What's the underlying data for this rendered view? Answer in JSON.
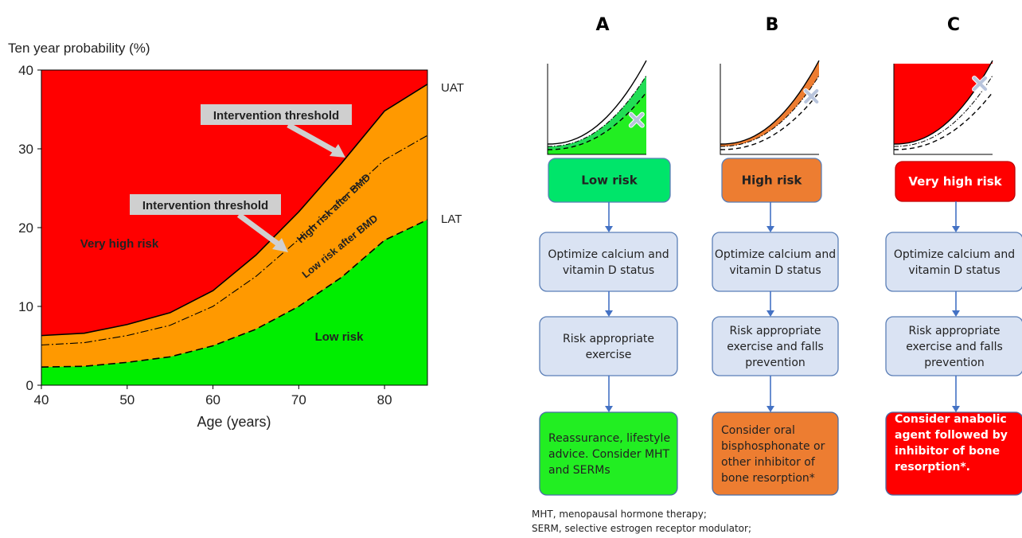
{
  "chart_data": {
    "type": "area",
    "title": "Ten year probability (%)",
    "xlabel": "Age (years)",
    "ylabel": "Ten year probability (%)",
    "xlim": [
      40,
      85
    ],
    "ylim": [
      0,
      40
    ],
    "x_ticks": [
      "40",
      "50",
      "60",
      "70",
      "80"
    ],
    "y_ticks": [
      "0",
      "10",
      "20",
      "30",
      "40"
    ],
    "x": [
      40,
      45,
      50,
      55,
      60,
      65,
      70,
      75,
      80,
      85
    ],
    "series": [
      {
        "values": [
          6.3,
          6.6,
          7.7,
          9.2,
          12.0,
          16.5,
          22.0,
          28.2,
          34.8,
          38.2
        ]
      },
      {
        "values": [
          5.1,
          5.4,
          6.3,
          7.6,
          10.0,
          13.8,
          18.5,
          23.6,
          28.6,
          31.7
        ]
      },
      {
        "values": [
          2.3,
          2.4,
          2.9,
          3.6,
          5.0,
          7.1,
          10.0,
          13.7,
          18.4,
          21.0
        ]
      }
    ],
    "regions": [
      "Very high risk",
      "High risk after BMD",
      "Low risk after BMD",
      "Low risk"
    ],
    "annotations": [
      "Intervention threshold",
      "Intervention threshold"
    ],
    "right_labels": [
      "UAT",
      "LAT"
    ],
    "colors": {
      "very_high": "#ff0000",
      "high": "#ff9900",
      "low": "#00ee00"
    }
  },
  "flow": {
    "columns": [
      {
        "letter": "A",
        "risk_label": "Low risk",
        "step1": [
          "Optimize calcium and",
          "vitamin D status"
        ],
        "step2": [
          "Risk  appropriate",
          "exercise"
        ],
        "final": [
          "Reassurance, lifestyle",
          "advice. Consider MHT",
          "and SERMs"
        ],
        "color": "#00e56a",
        "final_color": "#22ee22"
      },
      {
        "letter": "B",
        "risk_label": "High risk",
        "step1": [
          "Optimize calcium and",
          "vitamin D status"
        ],
        "step2": [
          "Risk  appropriate",
          "exercise and falls",
          "prevention"
        ],
        "final": [
          "Consider oral",
          "bisphosphonate or",
          "other inhibitor of",
          "bone resorption*"
        ],
        "color": "#ed7d31",
        "final_color": "#ed7d31"
      },
      {
        "letter": "C",
        "risk_label": "Very high risk",
        "step1": [
          "Optimize calcium and",
          "vitamin D status"
        ],
        "step2": [
          "Risk  appropriate",
          "exercise and falls",
          "prevention"
        ],
        "final": [
          "Consider anabolic",
          "agent followed by",
          "inhibitor of bone",
          "resorption*."
        ],
        "color": "#ff0000",
        "final_color": "#ff0000"
      }
    ],
    "footnotes": [
      "MHT, menopausal hormone therapy;",
      "SERM, selective estrogen receptor modulator;"
    ],
    "box_fill": "#dae3f3",
    "arrow_color": "#4472c4"
  }
}
